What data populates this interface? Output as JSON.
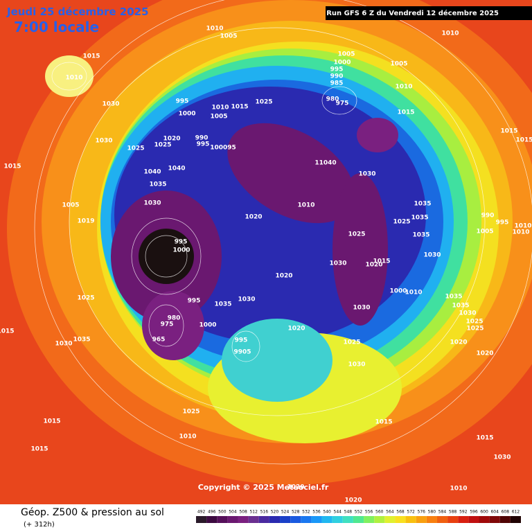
{
  "header": {
    "date": "Jeudi 25 décembre 2025",
    "time": "7:00 locale",
    "run": "Run GFS 6 Z du Vendredi 12 décembre 2025"
  },
  "footer": {
    "title": "Géop. Z500 & pression au sol",
    "lead": "(+ 312h)",
    "copyright": "Copyright © 2025 Meteociel.fr"
  },
  "colorbar": {
    "values": [
      492,
      496,
      500,
      504,
      508,
      512,
      516,
      520,
      524,
      528,
      532,
      536,
      540,
      544,
      548,
      552,
      556,
      560,
      564,
      568,
      572,
      576,
      580,
      584,
      588,
      592,
      596,
      600,
      604,
      608,
      612
    ],
    "colors": [
      "#2a1a2a",
      "#3c0a40",
      "#55105a",
      "#6a1870",
      "#7a2080",
      "#6a3090",
      "#4a2aa0",
      "#2a2ab0",
      "#1a40c8",
      "#1a5ae0",
      "#1a78f0",
      "#1a98f8",
      "#20b8f0",
      "#30d0e0",
      "#40e0c0",
      "#50e890",
      "#80f060",
      "#b0f040",
      "#e0f030",
      "#f8e020",
      "#f8c010",
      "#f8a010",
      "#f88010",
      "#f06010",
      "#e84010",
      "#d82010",
      "#c01010",
      "#a00a0a",
      "#800808",
      "#500505",
      "#200202"
    ]
  },
  "pressure_labels": [
    1010,
    1005,
    1010,
    1015,
    1010,
    1005,
    1000,
    995,
    990,
    985,
    1005,
    1010,
    1030,
    995,
    1000,
    1010,
    1015,
    1025,
    1005,
    980,
    975,
    1015,
    1030,
    1025,
    1020,
    1025,
    990,
    995,
    100095,
    1015,
    1015,
    1015,
    1040,
    1040,
    11040,
    1030,
    1035,
    1030,
    1005,
    1010,
    1035,
    1035,
    1025,
    1020,
    1019,
    990,
    995,
    1010,
    1005,
    1010,
    995,
    1000,
    1025,
    1035,
    1030,
    1015,
    1020,
    1030,
    1020,
    1000,
    1010,
    1025,
    995,
    1035,
    1030,
    1035,
    1035,
    1030,
    1025,
    1025,
    1030,
    1000,
    980,
    975,
    965,
    1020,
    995,
    9905,
    1030,
    1035,
    1025,
    1020,
    1020,
    1015,
    1030,
    1025,
    1015,
    1015,
    1015,
    1030,
    1010,
    1015,
    1010,
    1020,
    1020
  ]
}
